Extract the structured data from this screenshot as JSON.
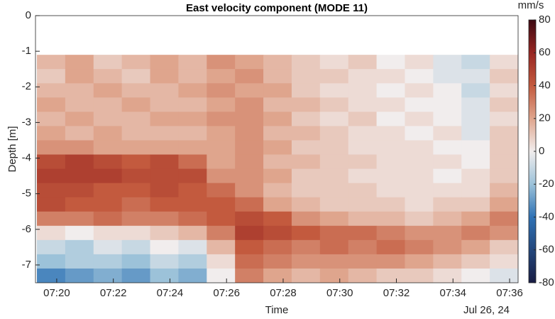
{
  "chart_data": {
    "type": "heatmap",
    "title": "East velocity component (MODE 11)",
    "xlabel": "Time",
    "ylabel": "Depth [m]",
    "x_date_label": "Jul 26, 24",
    "xlim": [
      19.25,
      36.3
    ],
    "xticks": [
      {
        "value": 20,
        "label": "07:20"
      },
      {
        "value": 22,
        "label": "07:22"
      },
      {
        "value": 24,
        "label": "07:24"
      },
      {
        "value": 26,
        "label": "07:26"
      },
      {
        "value": 28,
        "label": "07:28"
      },
      {
        "value": 30,
        "label": "07:30"
      },
      {
        "value": 32,
        "label": "07:32"
      },
      {
        "value": 34,
        "label": "07:34"
      },
      {
        "value": 36,
        "label": "07:36"
      }
    ],
    "ylim": [
      -7.5,
      0
    ],
    "yticks": [
      0,
      -1,
      -2,
      -3,
      -4,
      -5,
      -6,
      -7
    ],
    "x": [
      19.8,
      20.8,
      21.8,
      22.8,
      23.8,
      24.8,
      25.8,
      26.8,
      27.8,
      28.8,
      29.8,
      30.8,
      31.8,
      32.8,
      33.8,
      34.8,
      35.8
    ],
    "y": [
      -1.3,
      -1.7,
      -2.1,
      -2.5,
      -2.9,
      -3.3,
      -3.7,
      -4.1,
      -4.5,
      -4.9,
      -5.3,
      -5.7,
      -6.1,
      -6.5,
      -6.9,
      -7.3
    ],
    "values": [
      [
        15,
        20,
        10,
        15,
        20,
        15,
        25,
        20,
        15,
        10,
        5,
        10,
        0,
        5,
        -5,
        -10,
        5
      ],
      [
        10,
        20,
        15,
        10,
        20,
        15,
        20,
        25,
        15,
        10,
        10,
        5,
        5,
        0,
        -5,
        -5,
        10
      ],
      [
        15,
        15,
        20,
        15,
        15,
        20,
        25,
        20,
        20,
        10,
        5,
        5,
        0,
        5,
        0,
        -10,
        5
      ],
      [
        20,
        15,
        15,
        20,
        15,
        15,
        20,
        25,
        15,
        15,
        10,
        5,
        5,
        0,
        0,
        -5,
        10
      ],
      [
        15,
        20,
        15,
        15,
        20,
        20,
        25,
        25,
        20,
        10,
        5,
        10,
        0,
        5,
        0,
        -5,
        5
      ],
      [
        20,
        15,
        20,
        15,
        15,
        15,
        20,
        25,
        15,
        15,
        10,
        5,
        5,
        0,
        5,
        -5,
        10
      ],
      [
        25,
        25,
        20,
        20,
        20,
        20,
        20,
        25,
        20,
        10,
        10,
        5,
        5,
        5,
        0,
        0,
        10
      ],
      [
        45,
        50,
        45,
        40,
        45,
        35,
        20,
        25,
        15,
        15,
        10,
        10,
        5,
        5,
        5,
        0,
        10
      ],
      [
        50,
        50,
        50,
        45,
        45,
        45,
        25,
        25,
        20,
        10,
        10,
        5,
        5,
        5,
        0,
        5,
        10
      ],
      [
        45,
        45,
        40,
        40,
        45,
        40,
        35,
        25,
        15,
        10,
        10,
        10,
        5,
        5,
        5,
        5,
        15
      ],
      [
        45,
        40,
        40,
        35,
        40,
        40,
        40,
        35,
        20,
        15,
        10,
        10,
        10,
        5,
        10,
        10,
        20
      ],
      [
        30,
        30,
        35,
        30,
        30,
        35,
        40,
        45,
        40,
        25,
        20,
        15,
        15,
        10,
        15,
        20,
        30
      ],
      [
        5,
        0,
        5,
        5,
        10,
        15,
        30,
        50,
        45,
        40,
        35,
        35,
        30,
        25,
        25,
        30,
        25
      ],
      [
        -10,
        -15,
        -5,
        -10,
        0,
        -5,
        15,
        40,
        35,
        30,
        35,
        30,
        35,
        30,
        25,
        20,
        10
      ],
      [
        -20,
        -15,
        -15,
        -20,
        -10,
        -15,
        5,
        35,
        30,
        25,
        25,
        25,
        25,
        20,
        15,
        10,
        5
      ],
      [
        -35,
        -30,
        -25,
        -30,
        -20,
        -25,
        0,
        30,
        20,
        15,
        20,
        15,
        10,
        10,
        5,
        0,
        -5
      ]
    ],
    "colorbar_label": "mm/s",
    "clim": [
      -80,
      80
    ],
    "cticks": [
      80,
      60,
      40,
      20,
      0,
      -20,
      -40,
      -60,
      -80
    ],
    "colormap": [
      {
        "value": -80,
        "color": "#181c43"
      },
      {
        "value": -40,
        "color": "#2f72b5"
      },
      {
        "value": -20,
        "color": "#9cc2d9"
      },
      {
        "value": 0,
        "color": "#f1eded"
      },
      {
        "value": 20,
        "color": "#dfa58d"
      },
      {
        "value": 40,
        "color": "#c35a3e"
      },
      {
        "value": 60,
        "color": "#982622"
      },
      {
        "value": 80,
        "color": "#3c0912"
      }
    ]
  }
}
